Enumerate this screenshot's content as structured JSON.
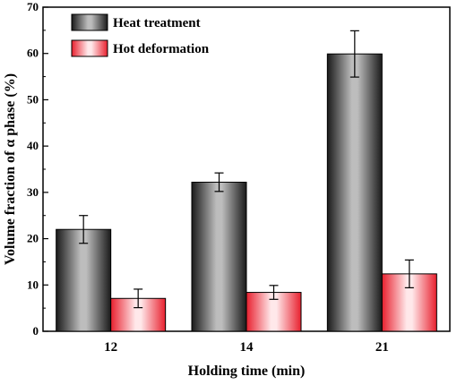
{
  "chart_data": {
    "type": "bar",
    "categories": [
      "12",
      "14",
      "21"
    ],
    "series": [
      {
        "name": "Heat treatment",
        "values": [
          22,
          32.2,
          59.9
        ],
        "errors": [
          3,
          2,
          5
        ],
        "color": "#4a4a4a"
      },
      {
        "name": "Hot deformation",
        "values": [
          7.1,
          8.4,
          12.4
        ],
        "errors": [
          2,
          1.5,
          3
        ],
        "color": "#f0555f"
      }
    ],
    "title": "",
    "xlabel": "Holding time (min)",
    "ylabel": "Volume fraction of α phase (%)",
    "ylim": [
      0,
      70
    ],
    "yticks": [
      "0",
      "10",
      "20",
      "30",
      "40",
      "50",
      "60",
      "70"
    ],
    "grid": false,
    "legend_position": "top-left"
  }
}
